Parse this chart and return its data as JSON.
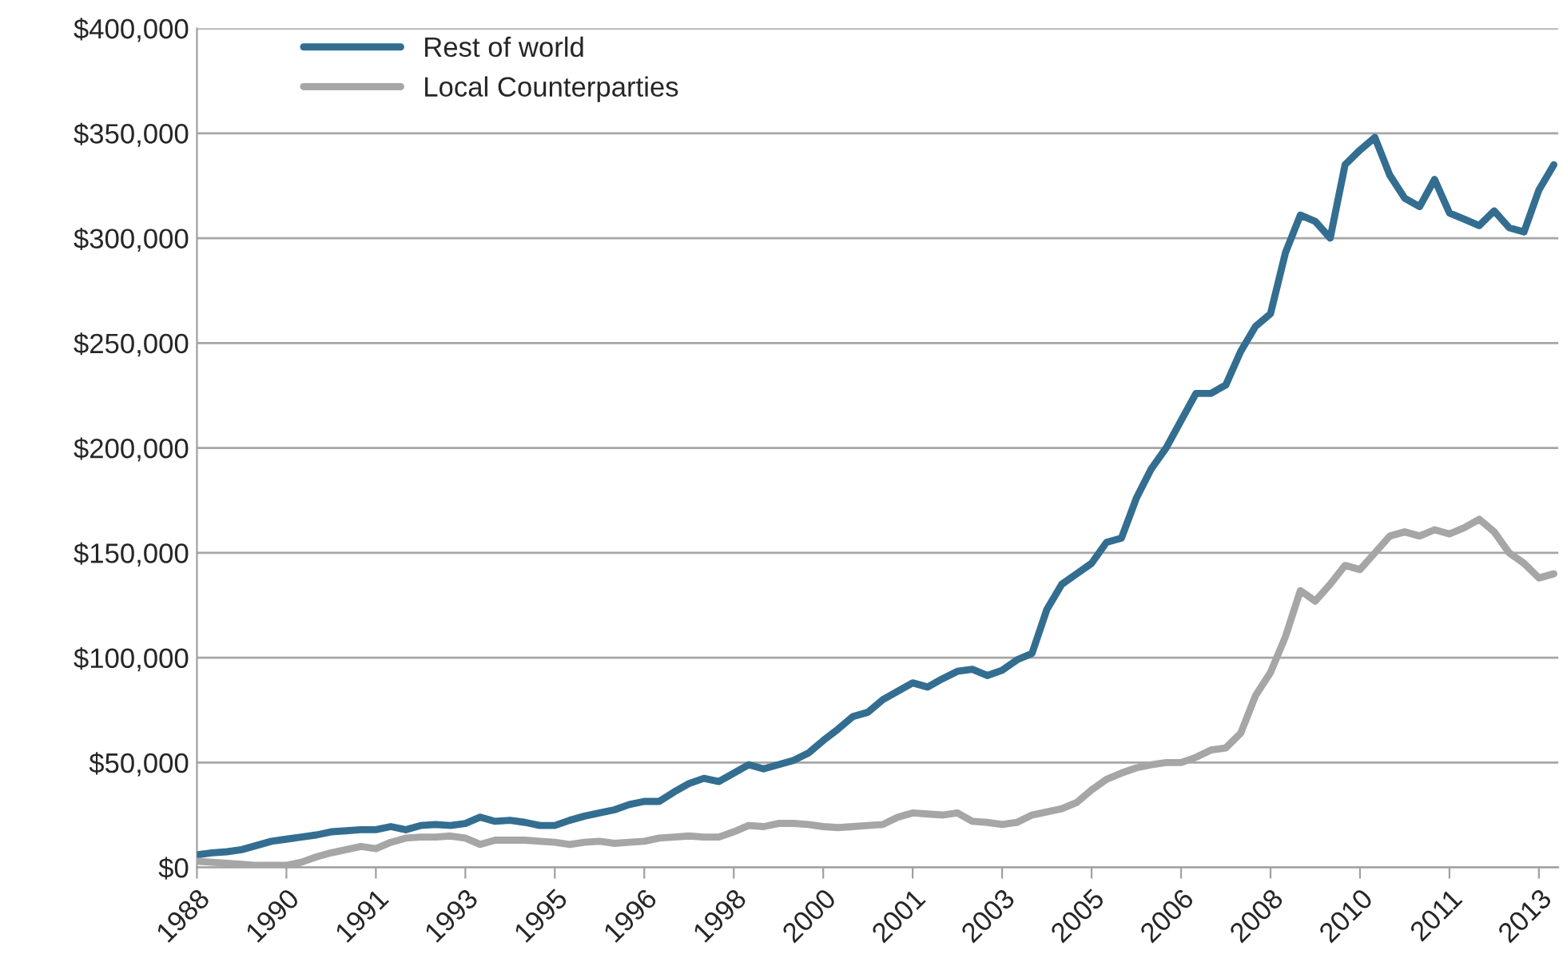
{
  "chart_data": {
    "type": "line",
    "categories": [
      "1988",
      null,
      null,
      null,
      null,
      null,
      "1990",
      null,
      null,
      null,
      null,
      null,
      "1991",
      null,
      null,
      null,
      null,
      null,
      "1993",
      null,
      null,
      null,
      null,
      null,
      "1995",
      null,
      null,
      null,
      null,
      null,
      "1996",
      null,
      null,
      null,
      null,
      null,
      "1998",
      null,
      null,
      null,
      null,
      null,
      "2000",
      null,
      null,
      null,
      null,
      null,
      "2001",
      null,
      null,
      null,
      null,
      null,
      "2003",
      null,
      null,
      null,
      null,
      null,
      "2005",
      null,
      null,
      null,
      null,
      null,
      "2006",
      null,
      null,
      null,
      null,
      null,
      "2008",
      null,
      null,
      null,
      null,
      null,
      "2010",
      null,
      null,
      null,
      null,
      null,
      "2011",
      null,
      null,
      null,
      null,
      null,
      "2013",
      null
    ],
    "series": [
      {
        "name": "Rest of world",
        "color": "#336e91",
        "values": [
          6000,
          7000,
          7500,
          8500,
          10500,
          12500,
          13500,
          14500,
          15500,
          17000,
          17500,
          18000,
          18000,
          19500,
          18000,
          20000,
          20500,
          20000,
          21000,
          24000,
          22000,
          22500,
          21500,
          20000,
          20000,
          22500,
          24500,
          26000,
          27500,
          30000,
          31500,
          31500,
          36000,
          40000,
          42500,
          41000,
          45000,
          49000,
          47000,
          49000,
          51000,
          54500,
          60500,
          66000,
          72000,
          74000,
          80000,
          84000,
          88000,
          86000,
          90000,
          93500,
          94500,
          91500,
          94000,
          99000,
          102000,
          123000,
          135000,
          140000,
          145000,
          155000,
          157000,
          176000,
          190000,
          200000,
          213000,
          226000,
          226000,
          230000,
          246000,
          258000,
          264000,
          293000,
          311000,
          308000,
          300000,
          335000,
          342000,
          348000,
          330000,
          319000,
          315000,
          328000,
          312000,
          309000,
          306000,
          313000,
          305000,
          303000,
          323000,
          335000
        ]
      },
      {
        "name": "Local Counterparties",
        "color": "#a6a6a6",
        "values": [
          3000,
          2500,
          2000,
          1500,
          1000,
          1000,
          1000,
          2500,
          5000,
          7000,
          8500,
          10000,
          9000,
          12000,
          14000,
          14500,
          14500,
          15000,
          14000,
          11000,
          13000,
          13000,
          13000,
          12500,
          12000,
          11000,
          12000,
          12500,
          11500,
          12000,
          12500,
          14000,
          14500,
          15000,
          14500,
          14500,
          17000,
          20000,
          19500,
          21000,
          21000,
          20500,
          19500,
          19000,
          19500,
          20000,
          20500,
          24000,
          26000,
          25500,
          25000,
          26000,
          22000,
          21500,
          20500,
          21500,
          25000,
          26500,
          28000,
          31000,
          37000,
          42000,
          45000,
          47500,
          49000,
          50000,
          50000,
          52500,
          56000,
          57000,
          64000,
          82000,
          93000,
          110000,
          132000,
          127000,
          135000,
          144000,
          142000,
          150000,
          158000,
          160000,
          158000,
          161000,
          159000,
          162000,
          166000,
          160000,
          150000,
          145000,
          138000,
          140000
        ]
      }
    ],
    "ylim": [
      0,
      400000
    ],
    "yticks": [
      {
        "value": 0,
        "label": "$0"
      },
      {
        "value": 50000,
        "label": "$50,000"
      },
      {
        "value": 100000,
        "label": "$100,000"
      },
      {
        "value": 150000,
        "label": "$150,000"
      },
      {
        "value": 200000,
        "label": "$200,000"
      },
      {
        "value": 250000,
        "label": "$250,000"
      },
      {
        "value": 300000,
        "label": "$300,000"
      },
      {
        "value": 350000,
        "label": "$350,000"
      },
      {
        "value": 400000,
        "label": "$400,000"
      }
    ],
    "grid": "y",
    "legend": "top left",
    "line_style": "solid"
  }
}
